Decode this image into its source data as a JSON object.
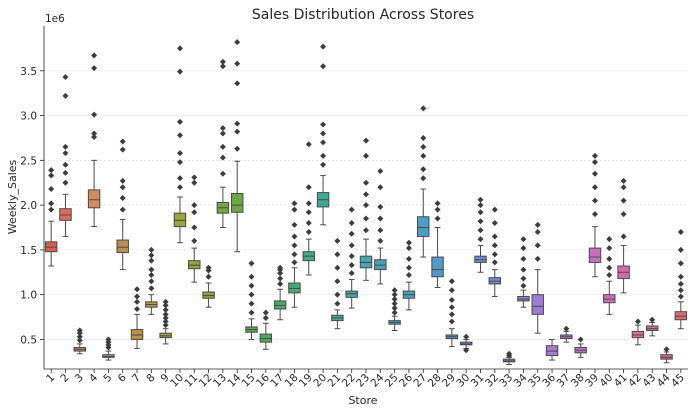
{
  "chart_data": {
    "type": "box",
    "title": "Sales Distribution Across Stores",
    "xlabel": "Store",
    "ylabel": "Weekly_Sales",
    "y_scale_label": "1e6",
    "ylim": [
      0.17,
      4.0
    ],
    "yticks": [
      0.5,
      1.0,
      1.5,
      2.0,
      2.5,
      3.0,
      3.5
    ],
    "ytick_labels": [
      "0.5",
      "1.0",
      "1.5",
      "2.0",
      "2.5",
      "3.0",
      "3.5"
    ],
    "grid": "horizontal",
    "categories": [
      "1",
      "2",
      "3",
      "4",
      "5",
      "6",
      "7",
      "8",
      "9",
      "10",
      "11",
      "12",
      "13",
      "14",
      "15",
      "16",
      "17",
      "18",
      "19",
      "20",
      "21",
      "22",
      "23",
      "24",
      "25",
      "26",
      "27",
      "28",
      "29",
      "30",
      "31",
      "32",
      "33",
      "34",
      "35",
      "36",
      "37",
      "38",
      "39",
      "40",
      "41",
      "42",
      "43",
      "44",
      "45"
    ],
    "colors": [
      "#d6604d",
      "#e26b5f",
      "#c7876f",
      "#d28c60",
      "#a9a07f",
      "#ba8f50",
      "#c0913f",
      "#b9973d",
      "#a49d3a",
      "#9aa33d",
      "#8fa63f",
      "#83a63d",
      "#76a63f",
      "#6ba743",
      "#5aa84d",
      "#50aa5d",
      "#4ca968",
      "#46aa77",
      "#42aa85",
      "#41a991",
      "#44a89b",
      "#45a7a4",
      "#47a6ae",
      "#48a5b5",
      "#48a2bb",
      "#4a9fc2",
      "#4d9dc9",
      "#5299cc",
      "#5695d2",
      "#5e90d6",
      "#6a8cd8",
      "#7887d9",
      "#8483d9",
      "#9080d8",
      "#9d7bd7",
      "#a978d3",
      "#b575cf",
      "#c071c9",
      "#c96fbf",
      "#d06db6",
      "#d46cac",
      "#d86c9f",
      "#da6b90",
      "#dc6b82",
      "#dd6c74"
    ],
    "stats": [
      {
        "q1": 1.48,
        "med": 1.53,
        "q3": 1.59,
        "lo": 1.32,
        "hi": 1.82,
        "fliers": [
          1.95,
          2.02,
          2.18,
          2.33,
          2.39
        ]
      },
      {
        "q1": 1.83,
        "med": 1.89,
        "q3": 1.96,
        "lo": 1.65,
        "hi": 2.12,
        "fliers": [
          2.25,
          2.36,
          2.45,
          2.58,
          2.65,
          3.22,
          3.43
        ]
      },
      {
        "q1": 0.37,
        "med": 0.39,
        "q3": 0.41,
        "lo": 0.34,
        "hi": 0.45,
        "fliers": [
          0.49,
          0.53,
          0.57,
          0.6
        ]
      },
      {
        "q1": 1.97,
        "med": 2.06,
        "q3": 2.17,
        "lo": 1.76,
        "hi": 2.5,
        "fliers": [
          2.76,
          2.8,
          3.01,
          3.53,
          3.67
        ]
      },
      {
        "q1": 0.3,
        "med": 0.31,
        "q3": 0.33,
        "lo": 0.27,
        "hi": 0.37,
        "fliers": [
          0.41,
          0.44,
          0.47,
          0.5
        ]
      },
      {
        "q1": 1.47,
        "med": 1.53,
        "q3": 1.61,
        "lo": 1.28,
        "hi": 1.84,
        "fliers": [
          1.95,
          2.08,
          2.2,
          2.27,
          2.62,
          2.71
        ]
      },
      {
        "q1": 0.5,
        "med": 0.55,
        "q3": 0.61,
        "lo": 0.4,
        "hi": 0.78,
        "fliers": [
          0.84,
          0.92,
          0.98,
          1.06
        ]
      },
      {
        "q1": 0.86,
        "med": 0.89,
        "q3": 0.92,
        "lo": 0.78,
        "hi": 1.0,
        "fliers": [
          1.07,
          1.15,
          1.22,
          1.28,
          1.38,
          1.44,
          1.5
        ]
      },
      {
        "q1": 0.52,
        "med": 0.54,
        "q3": 0.57,
        "lo": 0.45,
        "hi": 0.62,
        "fliers": [
          0.66,
          0.7,
          0.74,
          0.78,
          0.83,
          0.88,
          0.92
        ]
      },
      {
        "q1": 1.76,
        "med": 1.83,
        "q3": 1.91,
        "lo": 1.58,
        "hi": 2.09,
        "fliers": [
          2.2,
          2.3,
          2.48,
          2.58,
          2.78,
          2.93,
          3.49,
          3.75
        ]
      },
      {
        "q1": 1.29,
        "med": 1.33,
        "q3": 1.38,
        "lo": 1.14,
        "hi": 1.52,
        "fliers": [
          1.6,
          1.75,
          1.92,
          2.0,
          2.25,
          2.31
        ]
      },
      {
        "q1": 0.96,
        "med": 0.99,
        "q3": 1.03,
        "lo": 0.86,
        "hi": 1.13,
        "fliers": [
          1.2,
          1.27,
          1.3
        ]
      },
      {
        "q1": 1.91,
        "med": 1.97,
        "q3": 2.03,
        "lo": 1.75,
        "hi": 2.2,
        "fliers": [
          2.35,
          2.53,
          2.65,
          2.8,
          2.86,
          3.55,
          3.6
        ]
      },
      {
        "q1": 1.92,
        "med": 2.0,
        "q3": 2.13,
        "lo": 1.48,
        "hi": 2.49,
        "fliers": [
          2.63,
          2.82,
          2.91,
          3.36,
          3.58,
          3.82
        ]
      },
      {
        "q1": 0.58,
        "med": 0.61,
        "q3": 0.64,
        "lo": 0.5,
        "hi": 0.73,
        "fliers": [
          0.8,
          0.9,
          1.0,
          1.1,
          1.2,
          1.35
        ]
      },
      {
        "q1": 0.47,
        "med": 0.51,
        "q3": 0.56,
        "lo": 0.39,
        "hi": 0.68,
        "fliers": [
          0.74,
          0.8
        ]
      },
      {
        "q1": 0.84,
        "med": 0.88,
        "q3": 0.93,
        "lo": 0.72,
        "hi": 1.06,
        "fliers": [
          1.12,
          1.18,
          1.24,
          1.28,
          1.3
        ]
      },
      {
        "q1": 1.02,
        "med": 1.07,
        "q3": 1.13,
        "lo": 0.86,
        "hi": 1.3,
        "fliers": [
          1.36,
          1.45,
          1.55,
          1.65,
          1.78,
          1.95,
          2.02
        ]
      },
      {
        "q1": 1.38,
        "med": 1.43,
        "q3": 1.48,
        "lo": 1.22,
        "hi": 1.62,
        "fliers": [
          1.7,
          1.8,
          1.92,
          2.02,
          2.2,
          2.68
        ]
      },
      {
        "q1": 1.98,
        "med": 2.06,
        "q3": 2.14,
        "lo": 1.78,
        "hi": 2.33,
        "fliers": [
          2.45,
          2.55,
          2.7,
          2.8,
          2.9,
          3.55,
          3.77
        ]
      },
      {
        "q1": 0.71,
        "med": 0.74,
        "q3": 0.77,
        "lo": 0.62,
        "hi": 0.83,
        "fliers": [
          0.9,
          1.0,
          1.15,
          1.3,
          1.45,
          1.6
        ]
      },
      {
        "q1": 0.97,
        "med": 1.01,
        "q3": 1.04,
        "lo": 0.85,
        "hi": 1.17,
        "fliers": [
          1.24,
          1.33,
          1.43,
          1.55,
          1.68,
          1.8,
          1.95
        ]
      },
      {
        "q1": 1.3,
        "med": 1.36,
        "q3": 1.43,
        "lo": 1.16,
        "hi": 1.62,
        "fliers": [
          1.72,
          1.85,
          2.0,
          2.12,
          2.25,
          2.55,
          2.72
        ]
      },
      {
        "q1": 1.28,
        "med": 1.33,
        "q3": 1.39,
        "lo": 1.12,
        "hi": 1.52,
        "fliers": [
          1.6,
          1.72,
          1.85,
          1.98,
          2.2,
          2.38
        ]
      },
      {
        "q1": 0.67,
        "med": 0.69,
        "q3": 0.71,
        "lo": 0.6,
        "hi": 0.76,
        "fliers": [
          0.8,
          0.85,
          0.9,
          0.95,
          1.0,
          1.05
        ]
      },
      {
        "q1": 0.96,
        "med": 1.0,
        "q3": 1.04,
        "lo": 0.83,
        "hi": 1.14,
        "fliers": [
          1.22,
          1.3,
          1.4,
          1.52,
          1.58
        ]
      },
      {
        "q1": 1.65,
        "med": 1.75,
        "q3": 1.87,
        "lo": 1.42,
        "hi": 2.18,
        "fliers": [
          2.3,
          2.4,
          2.55,
          2.65,
          2.75,
          3.08
        ]
      },
      {
        "q1": 1.2,
        "med": 1.28,
        "q3": 1.42,
        "lo": 1.08,
        "hi": 1.75,
        "fliers": [
          1.85,
          1.95,
          2.02
        ]
      },
      {
        "q1": 0.51,
        "med": 0.53,
        "q3": 0.55,
        "lo": 0.42,
        "hi": 0.62,
        "fliers": [
          0.7,
          0.78,
          0.86,
          0.94,
          1.05,
          1.15
        ]
      },
      {
        "q1": 0.44,
        "med": 0.45,
        "q3": 0.47,
        "lo": 0.4,
        "hi": 0.5,
        "fliers": [
          0.38,
          0.53
        ]
      },
      {
        "q1": 1.36,
        "med": 1.39,
        "q3": 1.43,
        "lo": 1.25,
        "hi": 1.55,
        "fliers": [
          1.62,
          1.72,
          1.82,
          1.92,
          2.0,
          2.06
        ]
      },
      {
        "q1": 1.12,
        "med": 1.15,
        "q3": 1.19,
        "lo": 0.98,
        "hi": 1.28,
        "fliers": [
          1.36,
          1.45,
          1.55,
          1.65,
          1.8,
          1.95
        ]
      },
      {
        "q1": 0.25,
        "med": 0.26,
        "q3": 0.28,
        "lo": 0.22,
        "hi": 0.3,
        "fliers": [
          0.32,
          0.34
        ]
      },
      {
        "q1": 0.93,
        "med": 0.95,
        "q3": 0.98,
        "lo": 0.86,
        "hi": 1.05,
        "fliers": [
          1.1,
          1.18,
          1.28,
          1.4,
          1.52,
          1.62
        ]
      },
      {
        "q1": 0.78,
        "med": 0.87,
        "q3": 1.0,
        "lo": 0.57,
        "hi": 1.28,
        "fliers": [
          1.4,
          1.55,
          1.7,
          1.78
        ]
      },
      {
        "q1": 0.32,
        "med": 0.37,
        "q3": 0.43,
        "lo": 0.27,
        "hi": 0.5,
        "fliers": []
      },
      {
        "q1": 0.51,
        "med": 0.53,
        "q3": 0.55,
        "lo": 0.47,
        "hi": 0.59,
        "fliers": [
          0.62
        ]
      },
      {
        "q1": 0.35,
        "med": 0.38,
        "q3": 0.41,
        "lo": 0.3,
        "hi": 0.45,
        "fliers": [
          0.5
        ]
      },
      {
        "q1": 1.36,
        "med": 1.42,
        "q3": 1.52,
        "lo": 1.2,
        "hi": 1.76,
        "fliers": [
          1.9,
          2.05,
          2.2,
          2.35,
          2.48,
          2.55
        ]
      },
      {
        "q1": 0.91,
        "med": 0.95,
        "q3": 1.0,
        "lo": 0.78,
        "hi": 1.15,
        "fliers": [
          1.22,
          1.3,
          1.4,
          1.52,
          1.62
        ]
      },
      {
        "q1": 1.18,
        "med": 1.25,
        "q3": 1.32,
        "lo": 1.02,
        "hi": 1.55,
        "fliers": [
          1.65,
          1.9,
          2.05,
          2.2,
          2.27
        ]
      },
      {
        "q1": 0.52,
        "med": 0.55,
        "q3": 0.59,
        "lo": 0.44,
        "hi": 0.66,
        "fliers": [
          0.7
        ]
      },
      {
        "q1": 0.6,
        "med": 0.62,
        "q3": 0.65,
        "lo": 0.54,
        "hi": 0.69,
        "fliers": [
          0.72
        ]
      },
      {
        "q1": 0.28,
        "med": 0.3,
        "q3": 0.33,
        "lo": 0.24,
        "hi": 0.36,
        "fliers": [
          0.39
        ]
      },
      {
        "q1": 0.72,
        "med": 0.76,
        "q3": 0.81,
        "lo": 0.62,
        "hi": 0.92,
        "fliers": [
          0.98,
          1.05,
          1.12,
          1.2,
          1.35,
          1.5,
          1.7
        ]
      }
    ]
  }
}
